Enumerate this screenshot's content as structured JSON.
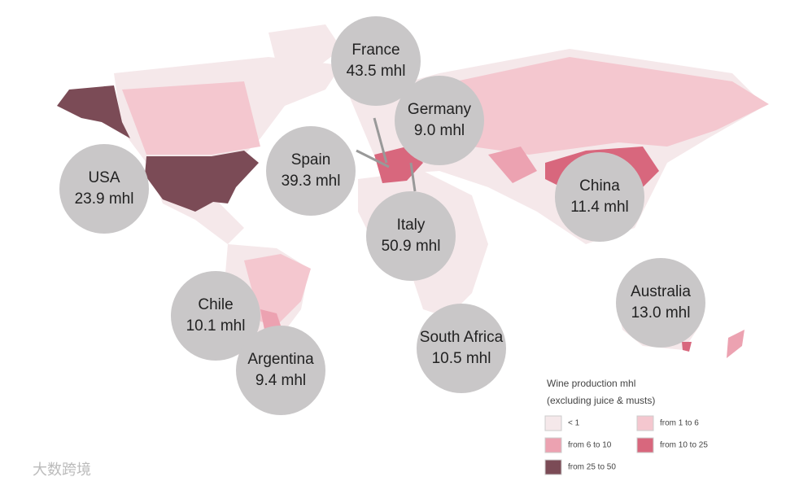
{
  "bubbles": [
    {
      "country": "France",
      "label": "43.5 mhl"
    },
    {
      "country": "Germany",
      "label": "9.0 mhl"
    },
    {
      "country": "Spain",
      "label": "39.3 mhl"
    },
    {
      "country": "USA",
      "label": "23.9 mhl"
    },
    {
      "country": "Italy",
      "label": "50.9 mhl"
    },
    {
      "country": "China",
      "label": "11.4 mhl"
    },
    {
      "country": "Australia",
      "label": "13.0 mhl"
    },
    {
      "country": "Chile",
      "label": "10.1 mhl"
    },
    {
      "country": "South Africa",
      "label": "10.5 mhl"
    },
    {
      "country": "Argentina",
      "label": "9.4 mhl"
    }
  ],
  "legend": {
    "title": "Wine production mhl",
    "subtitle": "(excluding juice & musts)",
    "items": [
      {
        "label": "< 1",
        "color": "#f5e8ea"
      },
      {
        "label": "from 1 to 6",
        "color": "#f4c7cf"
      },
      {
        "label": "from 6 to 10",
        "color": "#eca2b1"
      },
      {
        "label": "from 10 to 25",
        "color": "#d8677d"
      },
      {
        "label": "from 25 to 50",
        "color": "#7b4b56"
      }
    ]
  },
  "watermark": "大数跨境"
}
